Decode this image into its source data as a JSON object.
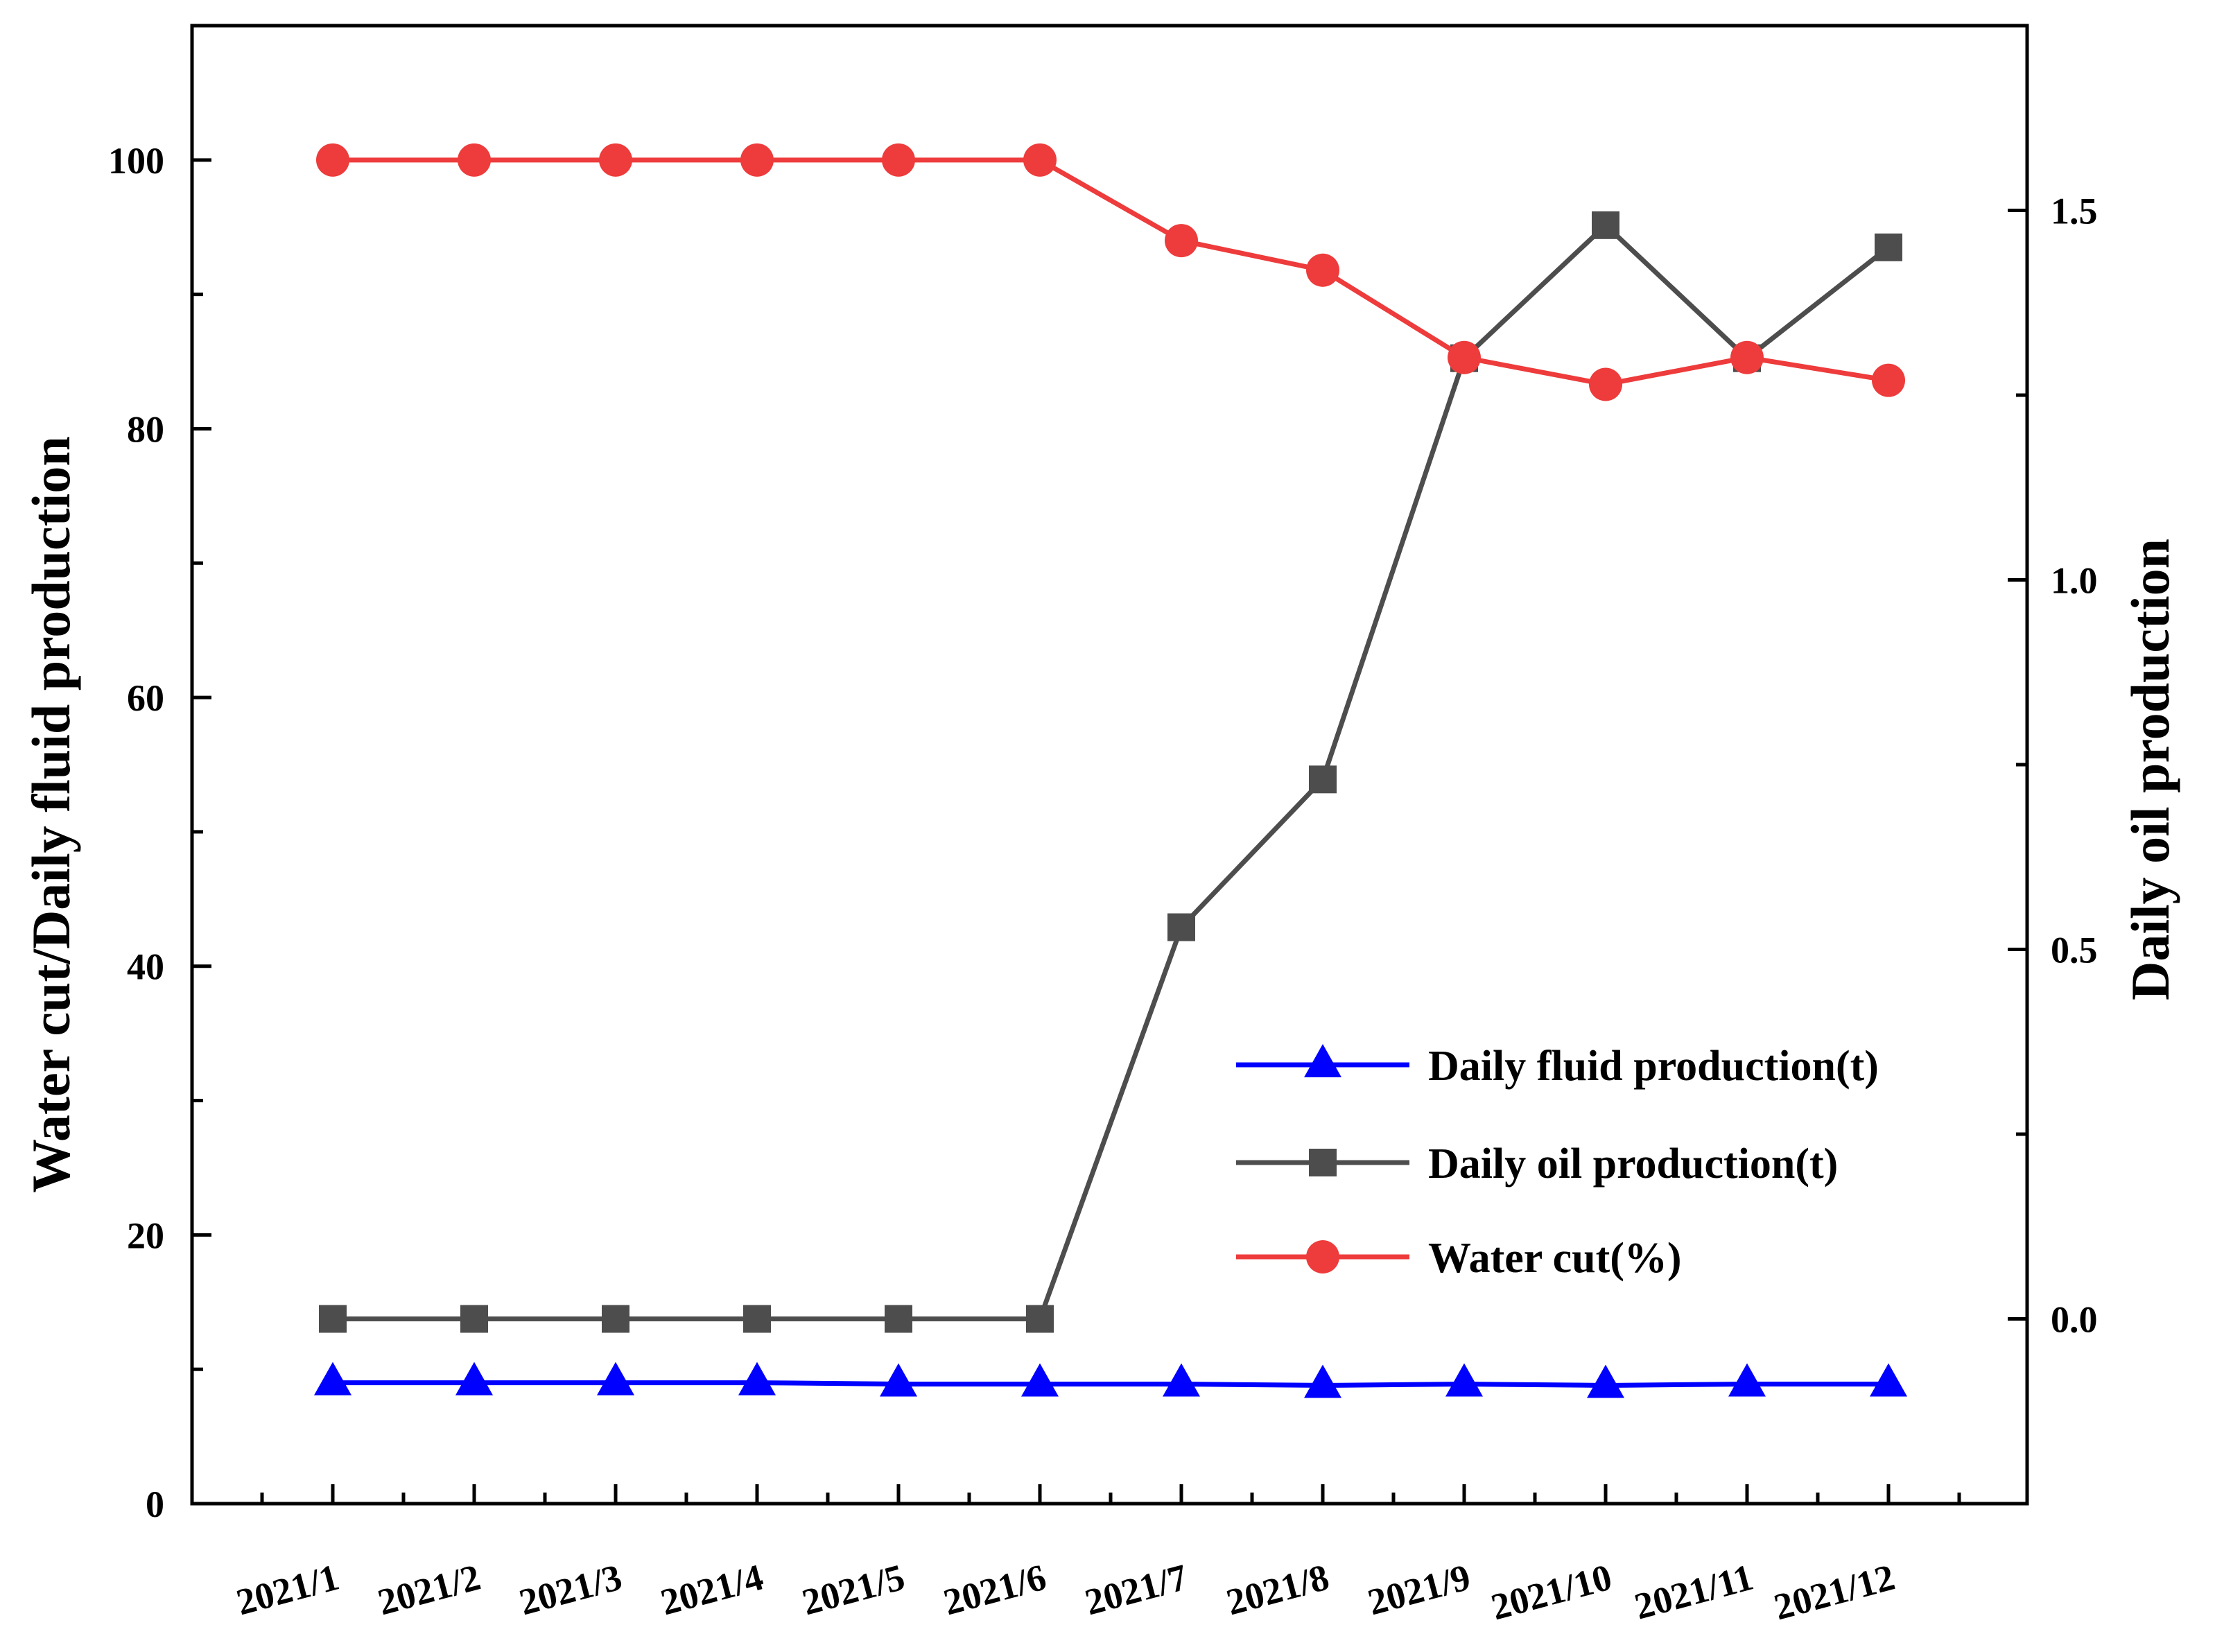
{
  "chart_data": {
    "type": "line",
    "title": "",
    "x": [
      "2021/1",
      "2021/2",
      "2021/3",
      "2021/4",
      "2021/5",
      "2021/6",
      "2021/7",
      "2021/8",
      "2021/9",
      "2021/10",
      "2021/11",
      "2021/12"
    ],
    "ylabel_left": "Water cut/Daily fluid production",
    "ylabel_right": "Daily oil production",
    "ylim_left": [
      0,
      110
    ],
    "ylim_right": [
      -0.25,
      1.75
    ],
    "yticks_left": [
      "0",
      "20",
      "40",
      "60",
      "80",
      "100"
    ],
    "yticks_right": [
      "0.0",
      "0.5",
      "1.0",
      "1.5"
    ],
    "grid": false,
    "legend_position": "lower-right",
    "series": [
      {
        "name": "Daily fluid production(t)",
        "axis": "left",
        "marker": "triangle",
        "color": "#0000ff",
        "values": [
          9.0,
          9.0,
          9.0,
          9.0,
          8.9,
          8.9,
          8.9,
          8.8,
          8.9,
          8.8,
          8.9,
          8.9
        ]
      },
      {
        "name": "Daily oil production(t)",
        "axis": "right",
        "marker": "square",
        "color": "#4d4d4d",
        "values": [
          0.0,
          0.0,
          0.0,
          0.0,
          0.0,
          0.0,
          0.53,
          0.73,
          1.3,
          1.48,
          1.3,
          1.45
        ]
      },
      {
        "name": "Water cut(%)",
        "axis": "left",
        "marker": "circle",
        "color": "#ee3b3b",
        "values": [
          100,
          100,
          100,
          100,
          100,
          100,
          94.0,
          91.8,
          85.3,
          83.3,
          85.3,
          83.6
        ]
      }
    ]
  }
}
